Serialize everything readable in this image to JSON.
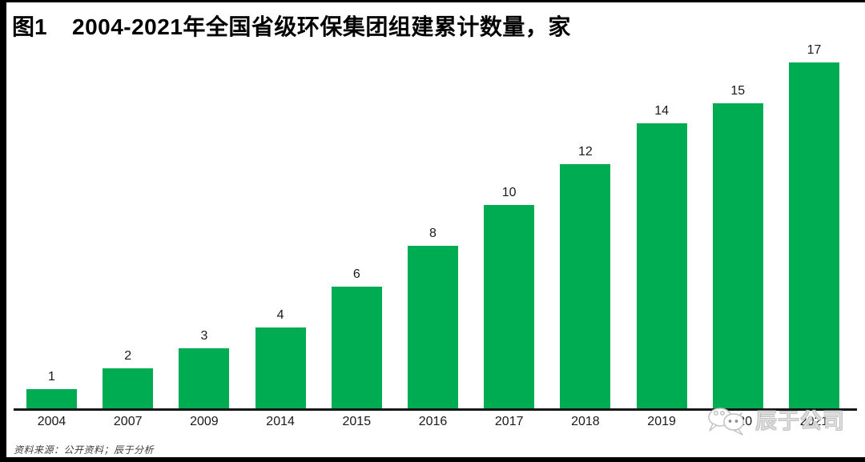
{
  "header": {
    "figure_label": "图1",
    "title": "2004-2021年全国省级环保集团组建累计数量，家"
  },
  "chart_data": {
    "type": "bar",
    "title": "2004-2021年全国省级环保集团组建累计数量，家",
    "unit": "家",
    "categories": [
      "2004",
      "2007",
      "2009",
      "2014",
      "2015",
      "2016",
      "2017",
      "2018",
      "2019",
      "2020",
      "2021"
    ],
    "values": [
      1,
      2,
      3,
      4,
      6,
      8,
      10,
      12,
      14,
      15,
      17
    ],
    "data_labels": [
      1,
      2,
      3,
      4,
      6,
      8,
      10,
      12,
      14,
      15,
      17
    ],
    "xlabel": "",
    "ylabel": "",
    "ylim": [
      0,
      17
    ],
    "grid": false,
    "legend": false,
    "bar_color": "#00ac52",
    "axis_color": "#161616",
    "label_color": "#1a1a1a"
  },
  "footer": {
    "source_note": "资料来源：公开资料；辰于分析"
  },
  "watermark": {
    "text": "辰于公司",
    "icon": "wechat-icon",
    "color": "#c3c3c3"
  }
}
